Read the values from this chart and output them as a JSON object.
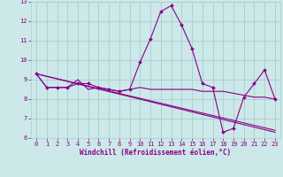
{
  "x": [
    0,
    1,
    2,
    3,
    4,
    5,
    6,
    7,
    8,
    9,
    10,
    11,
    12,
    13,
    14,
    15,
    16,
    17,
    18,
    19,
    20,
    21,
    22,
    23
  ],
  "line1": [
    9.3,
    8.6,
    8.6,
    8.6,
    8.8,
    8.8,
    8.6,
    8.5,
    8.4,
    8.5,
    9.9,
    11.1,
    12.5,
    12.8,
    11.8,
    10.6,
    8.8,
    8.6,
    6.3,
    6.5,
    8.1,
    8.8,
    9.5,
    8.0
  ],
  "line2": [
    9.3,
    8.6,
    8.6,
    8.6,
    9.0,
    8.5,
    8.6,
    8.5,
    8.4,
    8.5,
    8.6,
    8.5,
    8.5,
    8.5,
    8.5,
    8.5,
    8.4,
    8.4,
    8.4,
    8.3,
    8.2,
    8.1,
    8.1,
    8.0
  ],
  "line3_x": [
    0,
    23
  ],
  "line3": [
    9.3,
    6.3
  ],
  "line4_x": [
    0,
    23
  ],
  "line4": [
    9.3,
    6.4
  ],
  "bg_color": "#cce8e8",
  "grid_color": "#a8cece",
  "line_color": "#880088",
  "xlabel": "Windchill (Refroidissement éolien,°C)",
  "ylim": [
    6,
    13
  ],
  "xlim": [
    -0.5,
    23.5
  ],
  "yticks": [
    6,
    7,
    8,
    9,
    10,
    11,
    12,
    13
  ],
  "xticks": [
    0,
    1,
    2,
    3,
    4,
    5,
    6,
    7,
    8,
    9,
    10,
    11,
    12,
    13,
    14,
    15,
    16,
    17,
    18,
    19,
    20,
    21,
    22,
    23
  ]
}
